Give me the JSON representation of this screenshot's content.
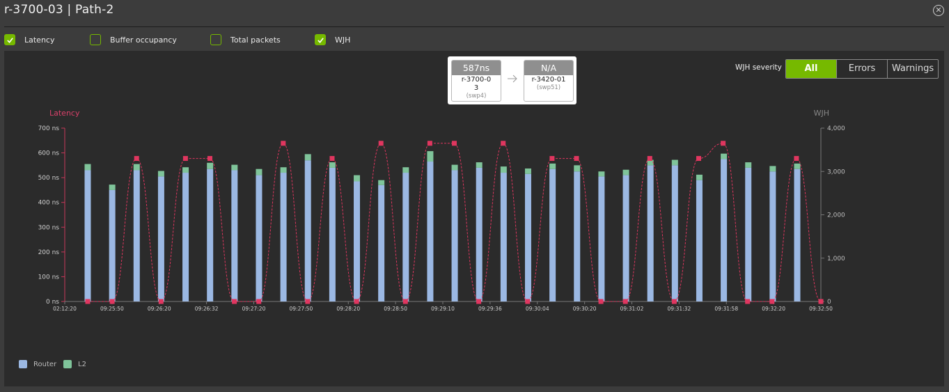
{
  "window": {
    "title": "r-3700-03 | Path-2",
    "close_icon": "close-icon"
  },
  "toggles": [
    {
      "label": "Latency",
      "checked": true
    },
    {
      "label": "Buffer occupancy",
      "checked": false
    },
    {
      "label": "Total packets",
      "checked": false
    },
    {
      "label": "WJH",
      "checked": true
    }
  ],
  "path_view": {
    "source": {
      "value": "587ns",
      "name": "r-3700-0\n3",
      "port": "(swp4)"
    },
    "dest": {
      "value": "N/A",
      "name": "r-3420-01",
      "port": "(swp51)"
    },
    "arrow_icon": "arrow-right-icon"
  },
  "severity": {
    "label": "WJH severity",
    "options": [
      "All",
      "Errors",
      "Warnings"
    ],
    "selected": "All"
  },
  "colors": {
    "accent": "#76b900",
    "router": "#9bb8e3",
    "l2": "#7fc49a",
    "wjh": "#e0365f"
  },
  "legend": [
    {
      "label": "Router",
      "color": "#9bb8e3"
    },
    {
      "label": "L2",
      "color": "#7fc49a"
    }
  ],
  "chart_data": {
    "type": "bar",
    "left_axis_label": "Latency",
    "right_axis_label": "WJH",
    "y_left": {
      "ticks": [
        "0 ns",
        "100 ns",
        "200 ns",
        "300 ns",
        "400 ns",
        "500 ns",
        "600 ns",
        "700 ns"
      ],
      "range": [
        0,
        700
      ]
    },
    "y_right": {
      "ticks": [
        "0",
        "1,000",
        "2,000",
        "3,000",
        "4,000"
      ],
      "range": [
        0,
        4000
      ]
    },
    "x_ticks": [
      "02:12:20",
      "09:25:50",
      "09:26:20",
      "09:26:32",
      "09:27:20",
      "09:27:50",
      "09:28:20",
      "09:28:50",
      "09:29:10",
      "09:29:36",
      "09:30:04",
      "09:30:20",
      "09:31:02",
      "09:31:32",
      "09:31:58",
      "09:32:20",
      "09:32:50"
    ],
    "bar_series": [
      {
        "name": "Router",
        "values": [
          530,
          450,
          530,
          505,
          520,
          535,
          530,
          510,
          520,
          570,
          540,
          485,
          470,
          520,
          565,
          530,
          540,
          520,
          515,
          535,
          525,
          505,
          510,
          550,
          550,
          490,
          575,
          540,
          525,
          535
        ]
      },
      {
        "name": "L2",
        "values": [
          25,
          22,
          25,
          22,
          22,
          25,
          22,
          25,
          22,
          25,
          22,
          25,
          20,
          22,
          42,
          22,
          22,
          25,
          22,
          22,
          25,
          20,
          22,
          22,
          22,
          22,
          22,
          22,
          22,
          22
        ]
      }
    ],
    "wjh_series": {
      "name": "WJH",
      "values": [
        0,
        0,
        3300,
        0,
        3300,
        3300,
        0,
        0,
        3650,
        0,
        3300,
        0,
        3650,
        0,
        3650,
        3650,
        0,
        3650,
        0,
        3300,
        3300,
        0,
        0,
        3300,
        0,
        3300,
        3650,
        0,
        0,
        3300,
        0
      ]
    }
  }
}
